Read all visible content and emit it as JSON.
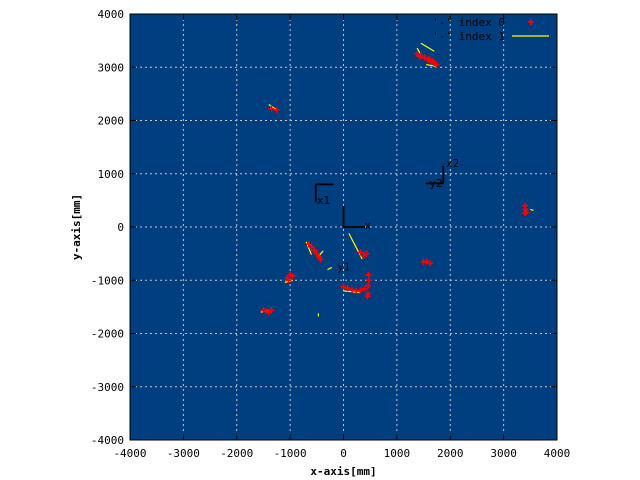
{
  "chart_data": {
    "type": "scatter",
    "title": "",
    "xlabel": "x-axis[mm]",
    "ylabel": "y-axis[mm]",
    "xlim": [
      -4000,
      4000
    ],
    "ylim": [
      -4000,
      4000
    ],
    "x_ticks": [
      "-4000",
      "-3000",
      "-2000",
      "-1000",
      "0",
      "1000",
      "2000",
      "3000",
      "4000"
    ],
    "y_ticks": [
      "-4000",
      "-3000",
      "-2000",
      "-1000",
      "0",
      "1000",
      "2000",
      "3000",
      "4000"
    ],
    "grid": true,
    "legend_position": "top-right",
    "plot_background": "#003f7f",
    "series": [
      {
        "name": "'-' index 0",
        "style": "points",
        "marker": "+",
        "color": "#ff0000",
        "points": [
          [
            1380,
            3250
          ],
          [
            1450,
            3220
          ],
          [
            1520,
            3180
          ],
          [
            1580,
            3140
          ],
          [
            1650,
            3100
          ],
          [
            1700,
            3080
          ],
          [
            1740,
            3050
          ],
          [
            1430,
            3200
          ],
          [
            1600,
            3160
          ],
          [
            1680,
            3120
          ],
          [
            -1350,
            2220
          ],
          [
            -1250,
            2200
          ],
          [
            3400,
            400
          ],
          [
            3410,
            330
          ],
          [
            3400,
            260
          ],
          [
            3420,
            280
          ],
          [
            1500,
            -660
          ],
          [
            1560,
            -650
          ],
          [
            1620,
            -680
          ],
          [
            -650,
            -320
          ],
          [
            -600,
            -380
          ],
          [
            -550,
            -440
          ],
          [
            -500,
            -500
          ],
          [
            -460,
            -560
          ],
          [
            -430,
            -610
          ],
          [
            320,
            -480
          ],
          [
            380,
            -540
          ],
          [
            430,
            -500
          ],
          [
            -1050,
            -950
          ],
          [
            -1000,
            -900
          ],
          [
            -950,
            -920
          ],
          [
            -1030,
            -1000
          ],
          [
            -1500,
            -1560
          ],
          [
            -1450,
            -1580
          ],
          [
            -1400,
            -1600
          ],
          [
            -1350,
            -1560
          ],
          [
            0,
            -1120
          ],
          [
            80,
            -1150
          ],
          [
            160,
            -1180
          ],
          [
            240,
            -1200
          ],
          [
            320,
            -1190
          ],
          [
            400,
            -1160
          ],
          [
            460,
            -1100
          ],
          [
            480,
            -1000
          ],
          [
            470,
            -900
          ],
          [
            460,
            -1250
          ],
          [
            450,
            -1300
          ]
        ]
      },
      {
        "name": "'-' index 1",
        "style": "lines",
        "color": "#ffff00",
        "segments": [
          [
            [
              1450,
              3450
            ],
            [
              1700,
              3300
            ]
          ],
          [
            [
              1380,
              3360
            ],
            [
              1480,
              3180
            ]
          ],
          [
            [
              1550,
              3050
            ],
            [
              1720,
              3020
            ]
          ],
          [
            [
              -1400,
              2300
            ],
            [
              -1250,
              2200
            ]
          ],
          [
            [
              3500,
              330
            ],
            [
              3560,
              310
            ]
          ],
          [
            [
              -600,
              -520
            ],
            [
              -700,
              -280
            ]
          ],
          [
            [
              -480,
              -560
            ],
            [
              -380,
              -450
            ]
          ],
          [
            [
              -300,
              -800
            ],
            [
              -220,
              -760
            ]
          ],
          [
            [
              100,
              -120
            ],
            [
              350,
              -600
            ]
          ],
          [
            [
              -1100,
              -1040
            ],
            [
              -950,
              -1000
            ]
          ],
          [
            [
              -1550,
              -1600
            ],
            [
              -1380,
              -1560
            ]
          ],
          [
            [
              0,
              -1200
            ],
            [
              300,
              -1230
            ]
          ],
          [
            [
              -470,
              -1620
            ],
            [
              -470,
              -1680
            ]
          ]
        ]
      }
    ],
    "frame_labels": [
      {
        "text": "x1",
        "x": -500,
        "y": 430
      },
      {
        "text": "y1",
        "x": -120,
        "y": -820
      },
      {
        "text": "x",
        "x": 390,
        "y": -40
      },
      {
        "text": "x2",
        "x": 1920,
        "y": 1130
      },
      {
        "text": "y2",
        "x": 1610,
        "y": 750
      }
    ],
    "frame_axes": [
      {
        "origin": [
          -520,
          800
        ],
        "x_dir": [
          1,
          0
        ],
        "y_dir": [
          0,
          -1
        ],
        "length": 330
      },
      {
        "origin": [
          0,
          0
        ],
        "x_dir": [
          1,
          0
        ],
        "y_dir": [
          0,
          1
        ],
        "length": 400
      },
      {
        "origin": [
          1870,
          820
        ],
        "x_dir": [
          -1,
          0
        ],
        "y_dir": [
          0,
          1
        ],
        "length": 330
      }
    ]
  }
}
